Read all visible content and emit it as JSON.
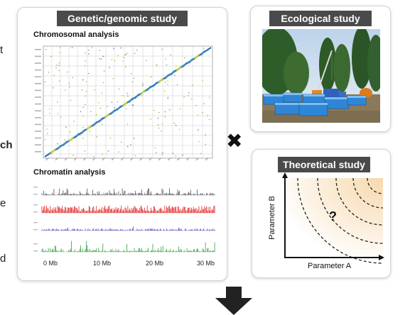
{
  "left_edge_fragments": [
    "t",
    "ch",
    "e",
    "d"
  ],
  "genetic": {
    "title": "Genetic/genomic study",
    "chromosomal_label": "Chromosomal analysis",
    "chromatin_label": "Chromatin analysis",
    "axis_ticks": [
      "0 Mb",
      "10 Mb",
      "20 Mb",
      "30 Mb"
    ],
    "track_colors": [
      "#555555",
      "#e02020",
      "#5050c0",
      "#30a040"
    ]
  },
  "ecological": {
    "title": "Ecological study"
  },
  "theoretical": {
    "title": "Theoretical study",
    "x_label": "Parameter A",
    "y_label": "Parameter B",
    "mark": "?"
  },
  "connector": {
    "symbol": "✖"
  }
}
